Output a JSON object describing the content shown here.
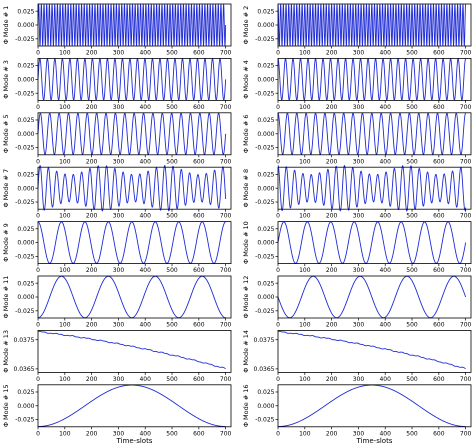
{
  "chart_data": [
    {
      "type": "line",
      "ylabel": "Φ Mode # 1",
      "xlabel": "",
      "xlim": [
        0,
        720
      ],
      "ylim": [
        -0.038,
        0.038
      ],
      "xticks": [
        0,
        100,
        200,
        300,
        400,
        500,
        600,
        700
      ],
      "xtick_labels": [
        "0",
        "100",
        "200",
        "300",
        "400",
        "500",
        "600",
        "700"
      ],
      "yticks": [
        0.025,
        0.0,
        -0.025
      ],
      "ytick_labels": [
        "0.025",
        "0.000",
        "-0.025"
      ],
      "series": [
        {
          "function": "sine",
          "amplitude": 0.0375,
          "offset": 0,
          "period": 10,
          "phase": 0,
          "x_range": [
            0,
            700
          ]
        }
      ]
    },
    {
      "type": "line",
      "ylabel": "Φ Mode # 2",
      "xlabel": "",
      "xlim": [
        0,
        720
      ],
      "ylim": [
        -0.038,
        0.038
      ],
      "xticks": [
        0,
        100,
        200,
        300,
        400,
        500,
        600,
        700
      ],
      "xtick_labels": [
        "0",
        "100",
        "200",
        "300",
        "400",
        "500",
        "600",
        "700"
      ],
      "yticks": [
        0.025,
        0.0,
        -0.025
      ],
      "ytick_labels": [
        "0.025",
        "0.000",
        "-0.025"
      ],
      "series": [
        {
          "function": "sine",
          "amplitude": 0.0375,
          "offset": 0,
          "period": 10,
          "phase": 1.57,
          "x_range": [
            0,
            700
          ]
        }
      ]
    },
    {
      "type": "line",
      "ylabel": "Φ Mode # 3",
      "xlabel": "",
      "xlim": [
        0,
        720
      ],
      "ylim": [
        -0.038,
        0.038
      ],
      "xticks": [
        0,
        100,
        200,
        300,
        400,
        500,
        600,
        700
      ],
      "xtick_labels": [
        "0",
        "100",
        "200",
        "300",
        "400",
        "500",
        "600",
        "700"
      ],
      "yticks": [
        0.025,
        0.0,
        -0.025
      ],
      "ytick_labels": [
        "0.025",
        "0.000",
        "-0.025"
      ],
      "series": [
        {
          "function": "sine",
          "amplitude": 0.0375,
          "offset": 0,
          "period": 28,
          "phase": 0,
          "x_range": [
            0,
            700
          ]
        }
      ]
    },
    {
      "type": "line",
      "ylabel": "Φ Mode # 4",
      "xlabel": "",
      "xlim": [
        0,
        720
      ],
      "ylim": [
        -0.038,
        0.038
      ],
      "xticks": [
        0,
        100,
        200,
        300,
        400,
        500,
        600,
        700
      ],
      "xtick_labels": [
        "0",
        "100",
        "200",
        "300",
        "400",
        "500",
        "600",
        "700"
      ],
      "yticks": [
        0.025,
        0.0,
        -0.025
      ],
      "ytick_labels": [
        "0.025",
        "0.000",
        "-0.025"
      ],
      "series": [
        {
          "function": "sine",
          "amplitude": 0.0375,
          "offset": 0,
          "period": 28,
          "phase": 1.57,
          "x_range": [
            0,
            700
          ]
        }
      ]
    },
    {
      "type": "line",
      "ylabel": "Φ Mode # 5",
      "xlabel": "",
      "xlim": [
        0,
        720
      ],
      "ylim": [
        -0.038,
        0.038
      ],
      "xticks": [
        0,
        100,
        200,
        300,
        400,
        500,
        600,
        700
      ],
      "xtick_labels": [
        "0",
        "100",
        "200",
        "300",
        "400",
        "500",
        "600",
        "700"
      ],
      "yticks": [
        0.025,
        0.0,
        -0.025
      ],
      "ytick_labels": [
        "0.025",
        "0.000",
        "-0.025"
      ],
      "series": [
        {
          "function": "sine",
          "amplitude": 0.0375,
          "offset": 0,
          "period": 35,
          "phase": 0,
          "x_range": [
            0,
            700
          ]
        }
      ]
    },
    {
      "type": "line",
      "ylabel": "Φ Mode # 6",
      "xlabel": "",
      "xlim": [
        0,
        720
      ],
      "ylim": [
        -0.038,
        0.038
      ],
      "xticks": [
        0,
        100,
        200,
        300,
        400,
        500,
        600,
        700
      ],
      "xtick_labels": [
        "0",
        "100",
        "200",
        "300",
        "400",
        "500",
        "600",
        "700"
      ],
      "yticks": [
        0.025,
        0.0,
        -0.025
      ],
      "ytick_labels": [
        "0.025",
        "0.000",
        "-0.025"
      ],
      "series": [
        {
          "function": "sine",
          "amplitude": 0.0375,
          "offset": 0,
          "period": 35,
          "phase": 1.57,
          "x_range": [
            0,
            700
          ]
        }
      ]
    },
    {
      "type": "line",
      "ylabel": "Φ Mode # 7",
      "xlabel": "",
      "xlim": [
        0,
        720
      ],
      "ylim": [
        -0.038,
        0.038
      ],
      "xticks": [
        0,
        100,
        200,
        300,
        400,
        500,
        600,
        700
      ],
      "xtick_labels": [
        "0",
        "100",
        "200",
        "300",
        "400",
        "500",
        "600",
        "700"
      ],
      "yticks": [
        0.025,
        0.0,
        -0.025
      ],
      "ytick_labels": [
        "0.025",
        "0.000",
        "-0.025"
      ],
      "series": [
        {
          "function": "modulated_sine",
          "amplitude": 0.033,
          "modulation": 0.25,
          "modulation_period": 240,
          "offset": 0,
          "period": 31,
          "phase": 0,
          "x_range": [
            0,
            700
          ]
        }
      ]
    },
    {
      "type": "line",
      "ylabel": "Φ Mode # 8",
      "xlabel": "",
      "xlim": [
        0,
        720
      ],
      "ylim": [
        -0.038,
        0.038
      ],
      "xticks": [
        0,
        100,
        200,
        300,
        400,
        500,
        600,
        700
      ],
      "xtick_labels": [
        "0",
        "100",
        "200",
        "300",
        "400",
        "500",
        "600",
        "700"
      ],
      "yticks": [
        0.025,
        0.0,
        -0.025
      ],
      "ytick_labels": [
        "0.025",
        "0.000",
        "-0.025"
      ],
      "series": [
        {
          "function": "modulated_sine",
          "amplitude": 0.033,
          "modulation": 0.25,
          "modulation_period": 240,
          "offset": 0,
          "period": 31,
          "phase": 1.57,
          "x_range": [
            0,
            700
          ]
        }
      ]
    },
    {
      "type": "line",
      "ylabel": "Φ Mode # 9",
      "xlabel": "",
      "xlim": [
        0,
        720
      ],
      "ylim": [
        -0.038,
        0.038
      ],
      "xticks": [
        0,
        100,
        200,
        300,
        400,
        500,
        600,
        700
      ],
      "xtick_labels": [
        "0",
        "100",
        "200",
        "300",
        "400",
        "500",
        "600",
        "700"
      ],
      "yticks": [
        0.025,
        0.0,
        -0.025
      ],
      "ytick_labels": [
        "0.025",
        "0.000",
        "-0.025"
      ],
      "series": [
        {
          "function": "sine",
          "amplitude": 0.0375,
          "offset": 0,
          "period": 87.5,
          "phase": 1.57,
          "x_range": [
            0,
            700
          ]
        }
      ]
    },
    {
      "type": "line",
      "ylabel": "Φ Mode # 10",
      "xlabel": "",
      "xlim": [
        0,
        720
      ],
      "ylim": [
        -0.038,
        0.038
      ],
      "xticks": [
        0,
        100,
        200,
        300,
        400,
        500,
        600,
        700
      ],
      "xtick_labels": [
        "0",
        "100",
        "200",
        "300",
        "400",
        "500",
        "600",
        "700"
      ],
      "yticks": [
        0.025,
        0.0,
        -0.025
      ],
      "ytick_labels": [
        "0.025",
        "0.000",
        "-0.025"
      ],
      "series": [
        {
          "function": "sine",
          "amplitude": 0.0375,
          "offset": 0,
          "period": 87.5,
          "phase": 0,
          "x_range": [
            0,
            700
          ]
        }
      ]
    },
    {
      "type": "line",
      "ylabel": "Φ Mode # 11",
      "xlabel": "",
      "xlim": [
        0,
        720
      ],
      "ylim": [
        -0.038,
        0.038
      ],
      "xticks": [
        0,
        100,
        200,
        300,
        400,
        500,
        600,
        700
      ],
      "xtick_labels": [
        "0",
        "100",
        "200",
        "300",
        "400",
        "500",
        "600",
        "700"
      ],
      "yticks": [
        0.025,
        0.0,
        -0.025
      ],
      "ytick_labels": [
        "0.025",
        "0.000",
        "-0.025"
      ],
      "series": [
        {
          "function": "sine",
          "amplitude": 0.0375,
          "offset": 0,
          "period": 175,
          "phase": -1.57,
          "x_range": [
            0,
            700
          ]
        }
      ]
    },
    {
      "type": "line",
      "ylabel": "Φ Mode # 12",
      "xlabel": "",
      "xlim": [
        0,
        720
      ],
      "ylim": [
        -0.038,
        0.038
      ],
      "xticks": [
        0,
        100,
        200,
        300,
        400,
        500,
        600,
        700
      ],
      "xtick_labels": [
        "0",
        "100",
        "200",
        "300",
        "400",
        "500",
        "600",
        "700"
      ],
      "yticks": [
        0.025,
        0.0,
        -0.025
      ],
      "ytick_labels": [
        "0.025",
        "0.000",
        "-0.025"
      ],
      "series": [
        {
          "function": "sine",
          "amplitude": 0.0375,
          "offset": 0,
          "period": 175,
          "phase": 3.14,
          "x_range": [
            0,
            700
          ]
        }
      ]
    },
    {
      "type": "line",
      "ylabel": "Φ Mode # 13",
      "xlabel": "",
      "xlim": [
        0,
        720
      ],
      "ylim": [
        0.03638,
        0.03782
      ],
      "xticks": [
        0,
        100,
        200,
        300,
        400,
        500,
        600,
        700
      ],
      "xtick_labels": [
        "0",
        "100",
        "200",
        "300",
        "400",
        "500",
        "600",
        "700"
      ],
      "yticks": [
        0.0375,
        0.0365
      ],
      "ytick_labels": [
        "0.0375",
        "0.0365"
      ],
      "series": [
        {
          "function": "decay",
          "y_start": 0.03778,
          "y_end": 0.03651,
          "curvature": 0.4,
          "x_range": [
            0,
            700
          ]
        }
      ]
    },
    {
      "type": "line",
      "ylabel": "Φ Mode # 14",
      "xlabel": "",
      "xlim": [
        0,
        720
      ],
      "ylim": [
        0.03638,
        0.03782
      ],
      "xticks": [
        0,
        100,
        200,
        300,
        400,
        500,
        600,
        700
      ],
      "xtick_labels": [
        "0",
        "100",
        "200",
        "300",
        "400",
        "500",
        "600",
        "700"
      ],
      "yticks": [
        0.0375,
        0.0365
      ],
      "ytick_labels": [
        "0.0375",
        "0.0365"
      ],
      "series": [
        {
          "function": "decay",
          "y_start": 0.03778,
          "y_end": 0.03651,
          "curvature": 0.4,
          "x_range": [
            0,
            700
          ]
        }
      ]
    },
    {
      "type": "line",
      "ylabel": "Φ Mode # 15",
      "xlabel": "Time-slots",
      "xlim": [
        0,
        720
      ],
      "ylim": [
        -0.038,
        0.038
      ],
      "xticks": [
        0,
        100,
        200,
        300,
        400,
        500,
        600,
        700
      ],
      "xtick_labels": [
        "0",
        "100",
        "200",
        "300",
        "400",
        "500",
        "600",
        "700"
      ],
      "yticks": [
        0.025,
        0.0,
        -0.025
      ],
      "ytick_labels": [
        "0.025",
        "0.000",
        "-0.025"
      ],
      "series": [
        {
          "function": "sine",
          "amplitude": 0.0375,
          "offset": 0,
          "period": 700,
          "phase": -1.57,
          "x_range": [
            0,
            700
          ]
        }
      ]
    },
    {
      "type": "line",
      "ylabel": "Φ Mode # 16",
      "xlabel": "Time-slots",
      "xlim": [
        0,
        720
      ],
      "ylim": [
        -0.038,
        0.038
      ],
      "xticks": [
        0,
        100,
        200,
        300,
        400,
        500,
        600,
        700
      ],
      "xtick_labels": [
        "0",
        "100",
        "200",
        "300",
        "400",
        "500",
        "600",
        "700"
      ],
      "yticks": [
        0.025,
        0.0,
        -0.025
      ],
      "ytick_labels": [
        "0.025",
        "0.000",
        "-0.025"
      ],
      "series": [
        {
          "function": "sine",
          "amplitude": 0.0375,
          "offset": 0,
          "period": 700,
          "phase": -1.57,
          "x_range": [
            0,
            700
          ]
        }
      ]
    }
  ],
  "style": {
    "line_color": "#1f2bd6",
    "axis_color": "#000000",
    "background": "#ffffff",
    "grid": false
  }
}
